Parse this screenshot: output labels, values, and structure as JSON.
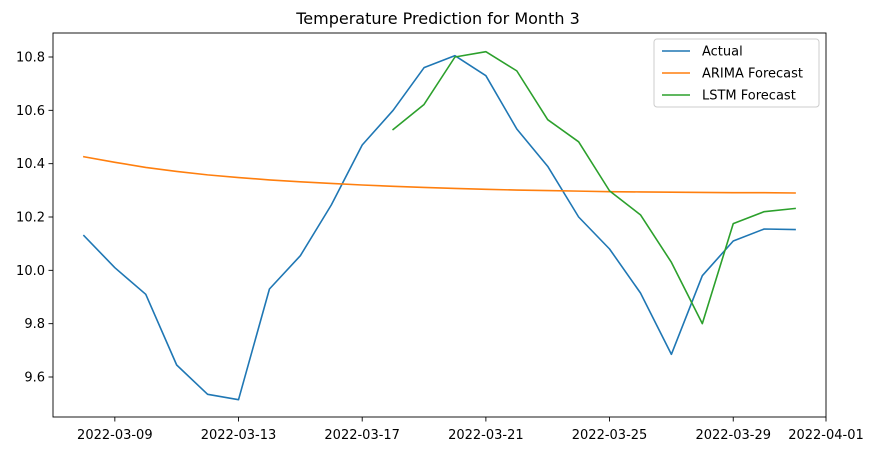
{
  "chart_data": {
    "type": "line",
    "title": "Temperature Prediction for Month 3",
    "xlabel": "",
    "ylabel": "",
    "x": [
      "2022-03-08",
      "2022-03-09",
      "2022-03-10",
      "2022-03-11",
      "2022-03-12",
      "2022-03-13",
      "2022-03-14",
      "2022-03-15",
      "2022-03-16",
      "2022-03-17",
      "2022-03-18",
      "2022-03-19",
      "2022-03-20",
      "2022-03-21",
      "2022-03-22",
      "2022-03-23",
      "2022-03-24",
      "2022-03-25",
      "2022-03-26",
      "2022-03-27",
      "2022-03-28",
      "2022-03-29",
      "2022-03-30",
      "2022-03-31"
    ],
    "series": [
      {
        "name": "Actual",
        "color": "#1f77b4",
        "values": [
          10.13,
          10.01,
          9.91,
          9.645,
          9.535,
          9.515,
          9.93,
          10.055,
          10.245,
          10.47,
          10.6,
          10.76,
          10.805,
          10.73,
          10.53,
          10.39,
          10.2,
          10.08,
          9.915,
          9.685,
          9.98,
          10.11,
          10.155,
          10.153
        ]
      },
      {
        "name": "ARIMA Forecast",
        "color": "#ff7f0e",
        "values": [
          10.426,
          10.405,
          10.386,
          10.371,
          10.358,
          10.348,
          10.339,
          10.332,
          10.326,
          10.32,
          10.315,
          10.311,
          10.307,
          10.304,
          10.301,
          10.299,
          10.297,
          10.295,
          10.294,
          10.293,
          10.292,
          10.291,
          10.291,
          10.29
        ]
      },
      {
        "name": "LSTM Forecast",
        "color": "#2ca02c",
        "values": [
          null,
          null,
          null,
          null,
          null,
          null,
          null,
          null,
          null,
          null,
          10.528,
          10.622,
          10.8,
          10.82,
          10.748,
          10.565,
          10.482,
          10.298,
          10.208,
          10.03,
          9.8,
          10.175,
          10.22,
          10.232
        ]
      }
    ],
    "xlim": [
      "2022-03-07",
      "2022-04-01"
    ],
    "ylim": [
      9.45,
      10.89
    ],
    "x_ticks": [
      "2022-03-09",
      "2022-03-13",
      "2022-03-17",
      "2022-03-21",
      "2022-03-25",
      "2022-03-29",
      "2022-04-01"
    ],
    "y_ticks": [
      9.6,
      9.8,
      10.0,
      10.2,
      10.4,
      10.6,
      10.8
    ],
    "y_tick_labels": [
      "9.6",
      "9.8",
      "10.0",
      "10.2",
      "10.4",
      "10.6",
      "10.8"
    ],
    "grid": false,
    "legend_position": "top-right"
  }
}
